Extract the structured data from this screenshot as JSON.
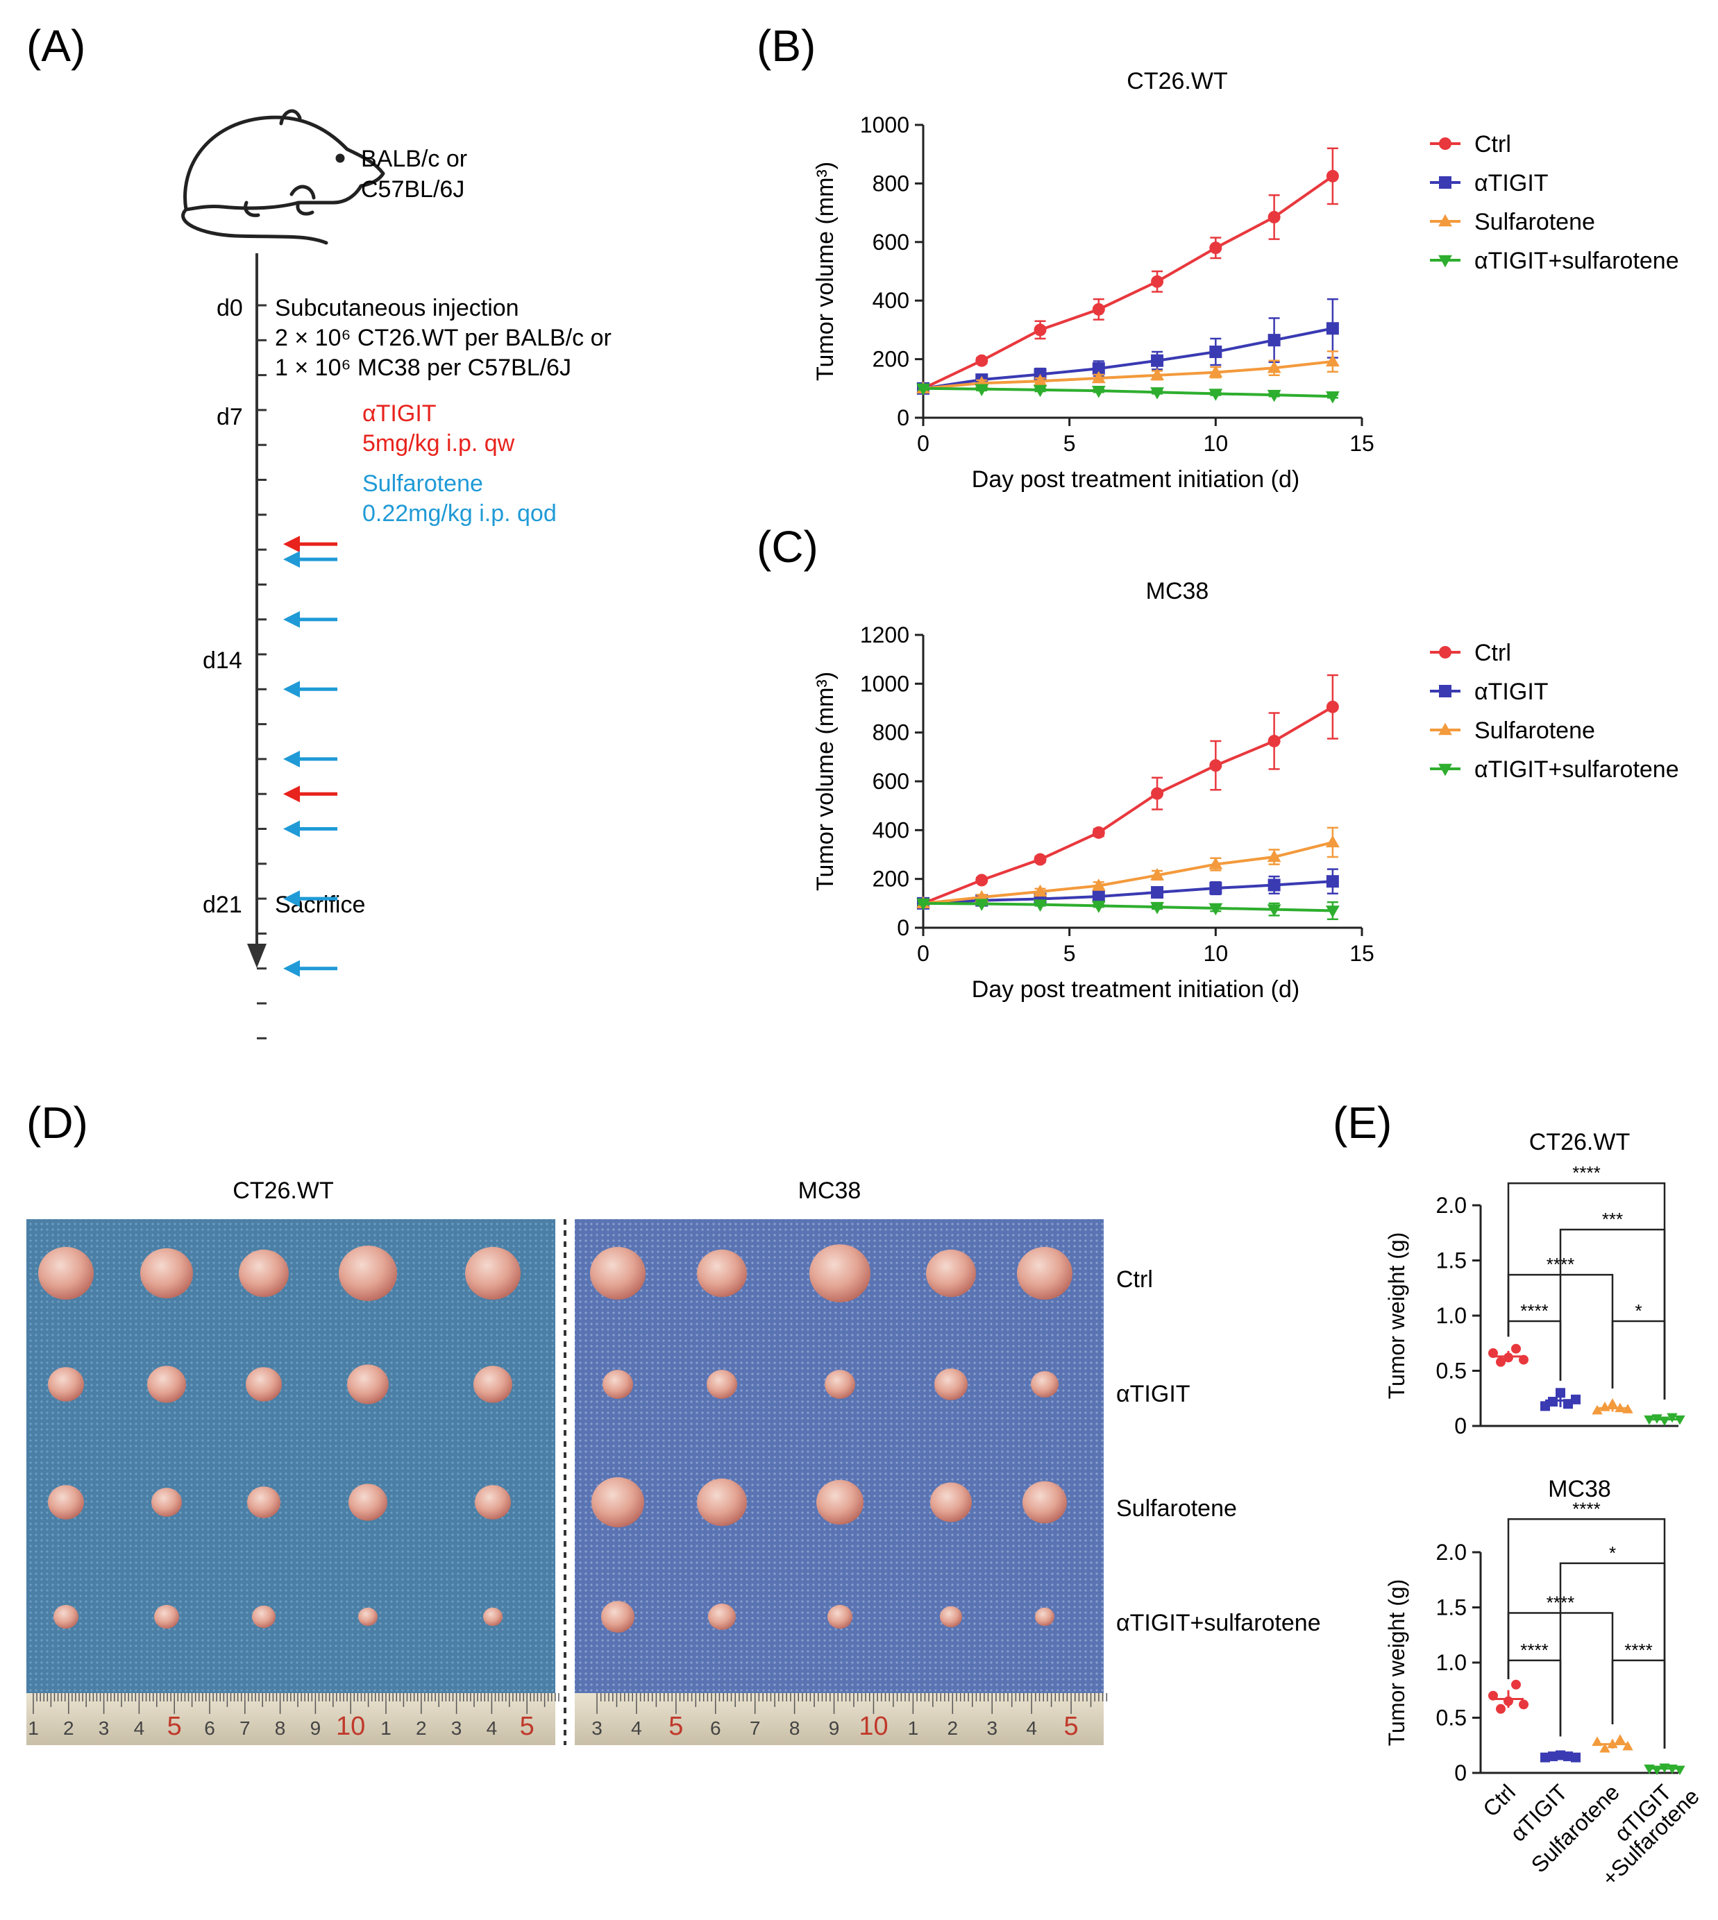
{
  "colors": {
    "ctrl": "#e8383d",
    "atigit": "#3a3ab3",
    "sulfarotene": "#f39a3c",
    "combo": "#2eae2e",
    "arrow_red": "#e8231d",
    "arrow_blue": "#1f9ad6",
    "axis": "#222222"
  },
  "panelA": {
    "label": "(A)",
    "mouse_icon": "mouse-icon",
    "strain_line1": "BALB/c or",
    "strain_line2": "C57BL/6J",
    "d0": "d0",
    "d7": "d7",
    "d14": "d14",
    "d21": "d21",
    "injection_line1": "Subcutaneous injection",
    "injection_line2": "2 × 10⁶ CT26.WT per BALB/c or",
    "injection_line3": "1 × 10⁶ MC38 per C57BL/6J",
    "atigit_label": "αTIGIT",
    "atigit_dose": "5mg/kg i.p. qw",
    "sulf_label": "Sulfarotene",
    "sulf_dose": "0.22mg/kg i.p. qod",
    "sacrifice": "Sacrifice"
  },
  "panelD": {
    "label": "(D)",
    "ct26_title": "CT26.WT",
    "mc38_title": "MC38",
    "rows": [
      "Ctrl",
      "αTIGIT",
      "Sulfarotene",
      "αTIGIT+sulfarotene"
    ],
    "ruler_left": [
      "1",
      "2",
      "3",
      "4",
      "5",
      "6",
      "7",
      "8",
      "9",
      "10",
      "1",
      "2",
      "3",
      "4",
      "5"
    ],
    "ruler_right": [
      "3",
      "4",
      "5",
      "6",
      "7",
      "8",
      "9",
      "10",
      "1",
      "2",
      "3",
      "4",
      "5"
    ]
  },
  "chart_data": [
    {
      "panel": "(B)",
      "type": "line",
      "title": "CT26.WT",
      "xlabel": "Day post treatment initiation (d)",
      "ylabel": "Tumor volume (mm³)",
      "xlim": [
        0,
        15
      ],
      "ylim": [
        0,
        1000
      ],
      "xticks": [
        0,
        5,
        10,
        15
      ],
      "yticks": [
        0,
        200,
        400,
        600,
        800,
        1000
      ],
      "x": [
        0,
        2,
        4,
        6,
        8,
        10,
        12,
        14
      ],
      "legend": "right",
      "series": [
        {
          "name": "Ctrl",
          "key": "ctrl",
          "marker": "circle",
          "values": [
            100,
            195,
            300,
            370,
            465,
            580,
            685,
            825
          ],
          "err": [
            10,
            10,
            30,
            35,
            35,
            35,
            75,
            95
          ]
        },
        {
          "name": "αTIGIT",
          "key": "atigit",
          "marker": "square",
          "values": [
            100,
            130,
            148,
            168,
            195,
            225,
            265,
            305
          ],
          "err": [
            10,
            15,
            20,
            25,
            30,
            45,
            75,
            100
          ]
        },
        {
          "name": "Sulfarotene",
          "key": "sulfarotene",
          "marker": "triangle-up",
          "values": [
            100,
            118,
            125,
            135,
            145,
            155,
            170,
            192
          ],
          "err": [
            8,
            10,
            10,
            12,
            15,
            18,
            25,
            35
          ]
        },
        {
          "name": "αTIGIT+sulfarotene",
          "key": "combo",
          "marker": "triangle-down",
          "values": [
            100,
            98,
            95,
            92,
            87,
            82,
            78,
            73
          ],
          "err": [
            5,
            5,
            5,
            5,
            5,
            5,
            5,
            5
          ]
        }
      ]
    },
    {
      "panel": "(C)",
      "type": "line",
      "title": "MC38",
      "xlabel": "Day post treatment initiation (d)",
      "ylabel": "Tumor volume (mm³)",
      "xlim": [
        0,
        15
      ],
      "ylim": [
        0,
        1200
      ],
      "xticks": [
        0,
        5,
        10,
        15
      ],
      "yticks": [
        0,
        200,
        400,
        600,
        800,
        1000,
        1200
      ],
      "x": [
        0,
        2,
        4,
        6,
        8,
        10,
        12,
        14
      ],
      "legend": "right",
      "series": [
        {
          "name": "Ctrl",
          "key": "ctrl",
          "marker": "circle",
          "values": [
            100,
            195,
            280,
            390,
            550,
            665,
            765,
            905
          ],
          "err": [
            10,
            10,
            12,
            15,
            65,
            100,
            115,
            130
          ]
        },
        {
          "name": "αTIGIT",
          "key": "atigit",
          "marker": "square",
          "values": [
            100,
            112,
            118,
            128,
            145,
            162,
            175,
            190
          ],
          "err": [
            8,
            10,
            12,
            15,
            20,
            25,
            35,
            50
          ]
        },
        {
          "name": "Sulfarotene",
          "key": "sulfarotene",
          "marker": "triangle-up",
          "values": [
            100,
            125,
            148,
            172,
            215,
            260,
            290,
            350
          ],
          "err": [
            8,
            10,
            12,
            15,
            18,
            25,
            30,
            60
          ]
        },
        {
          "name": "αTIGIT+sulfarotene",
          "key": "combo",
          "marker": "triangle-down",
          "values": [
            100,
            98,
            95,
            90,
            85,
            80,
            75,
            70
          ],
          "err": [
            5,
            5,
            5,
            5,
            8,
            12,
            25,
            35
          ]
        }
      ]
    },
    {
      "panel": "(E)",
      "type": "scatter",
      "title": "CT26.WT",
      "ylabel": "Tumor weight (g)",
      "ylim": [
        0,
        2.0
      ],
      "yticks": [
        "0",
        "0.5",
        "1.0",
        "1.5",
        "2.0"
      ],
      "categories": [
        "Ctrl",
        "αTIGIT",
        "Sulfarotene",
        "αTIGIT +Sulfarotene"
      ],
      "groups": [
        {
          "key": "ctrl",
          "marker": "circle",
          "points": [
            0.66,
            0.58,
            0.62,
            0.7,
            0.6
          ],
          "mean": 0.63,
          "sd": 0.05
        },
        {
          "key": "atigit",
          "marker": "square",
          "points": [
            0.18,
            0.22,
            0.3,
            0.2,
            0.24
          ],
          "mean": 0.23,
          "sd": 0.06
        },
        {
          "key": "sulfarotene",
          "marker": "triangle-up",
          "points": [
            0.14,
            0.17,
            0.2,
            0.16,
            0.15
          ],
          "mean": 0.16,
          "sd": 0.03
        },
        {
          "key": "combo",
          "marker": "triangle-down",
          "points": [
            0.06,
            0.07,
            0.05,
            0.08,
            0.06
          ],
          "mean": 0.06,
          "sd": 0.01
        }
      ],
      "brackets": [
        {
          "from": 0,
          "to": 1,
          "label": "****",
          "level": 0.95
        },
        {
          "from": 2,
          "to": 3,
          "label": "*",
          "level": 0.95
        },
        {
          "from": 0,
          "to": 2,
          "label": "****",
          "level": 1.37
        },
        {
          "from": 1,
          "to": 3,
          "label": "***",
          "level": 1.78
        },
        {
          "from": 0,
          "to": 3,
          "label": "****",
          "level": 2.2
        }
      ]
    },
    {
      "panel": "(E)",
      "type": "scatter",
      "title": "MC38",
      "ylabel": "Tumor weight (g)",
      "ylim": [
        0,
        2.0
      ],
      "yticks": [
        "0",
        "0.5",
        "1.0",
        "1.5",
        "2.0"
      ],
      "categories": [
        "Ctrl",
        "αTIGIT",
        "Sulfarotene",
        "αTIGIT +Sulfarotene"
      ],
      "groups": [
        {
          "key": "ctrl",
          "marker": "circle",
          "points": [
            0.7,
            0.58,
            0.65,
            0.8,
            0.62
          ],
          "mean": 0.67,
          "sd": 0.08
        },
        {
          "key": "atigit",
          "marker": "square",
          "points": [
            0.14,
            0.15,
            0.16,
            0.15,
            0.14
          ],
          "mean": 0.15,
          "sd": 0.01
        },
        {
          "key": "sulfarotene",
          "marker": "triangle-up",
          "points": [
            0.28,
            0.22,
            0.26,
            0.3,
            0.24
          ],
          "mean": 0.26,
          "sd": 0.04
        },
        {
          "key": "combo",
          "marker": "triangle-down",
          "points": [
            0.04,
            0.03,
            0.05,
            0.04,
            0.03
          ],
          "mean": 0.04,
          "sd": 0.01
        }
      ],
      "brackets": [
        {
          "from": 0,
          "to": 1,
          "label": "****",
          "level": 1.02
        },
        {
          "from": 2,
          "to": 3,
          "label": "****",
          "level": 1.02
        },
        {
          "from": 0,
          "to": 2,
          "label": "****",
          "level": 1.45
        },
        {
          "from": 1,
          "to": 3,
          "label": "*",
          "level": 1.9
        },
        {
          "from": 0,
          "to": 3,
          "label": "****",
          "level": 2.3
        }
      ]
    }
  ],
  "panel_labels": {
    "B": "(B)",
    "C": "(C)",
    "E": "(E)"
  }
}
